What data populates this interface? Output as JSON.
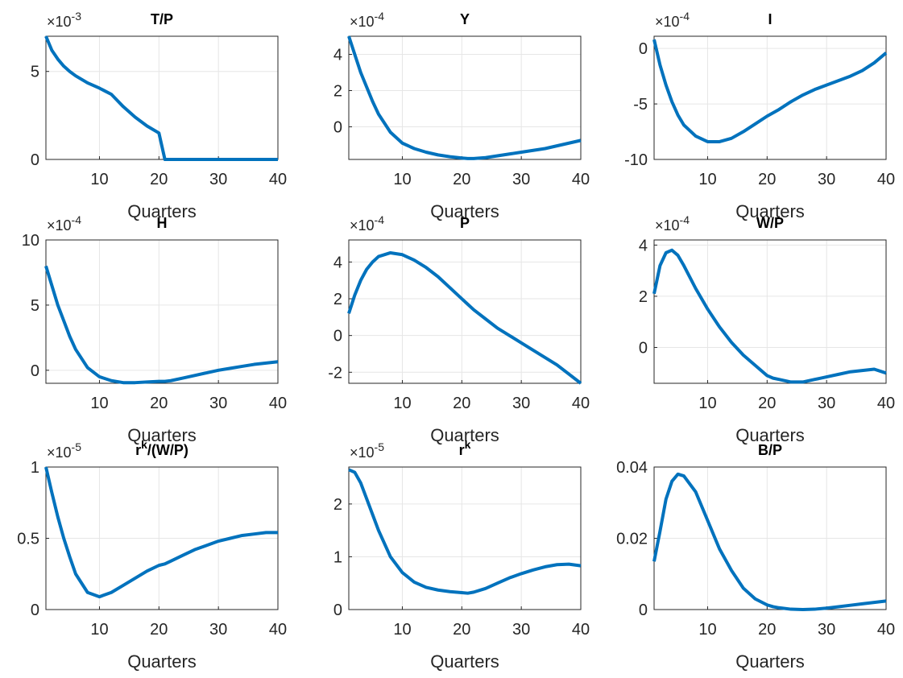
{
  "chart_data": [
    {
      "type": "line",
      "title": "T/P",
      "xlabel": "Quarters",
      "y_exponent_base": "×10",
      "y_exponent": -3,
      "color": "#0072bd",
      "grid": true,
      "x": [
        1,
        2,
        3,
        4,
        5,
        6,
        8,
        10,
        12,
        14,
        16,
        18,
        20,
        21,
        22,
        24,
        26,
        28,
        30,
        32,
        34,
        36,
        38,
        40
      ],
      "values": [
        7,
        6.2,
        5.7,
        5.3,
        5.0,
        4.75,
        4.35,
        4.05,
        3.7,
        3.0,
        2.4,
        1.9,
        1.5,
        0,
        0,
        0,
        0,
        0,
        0,
        0,
        0,
        0,
        0,
        0
      ],
      "xlim": [
        1,
        40
      ],
      "xticks": [
        10,
        20,
        30,
        40
      ],
      "ylim": [
        0,
        7
      ],
      "yticks": [
        0,
        5
      ]
    },
    {
      "type": "line",
      "title": "Y",
      "xlabel": "Quarters",
      "y_exponent_base": "×10",
      "y_exponent": -4,
      "color": "#0072bd",
      "grid": true,
      "x": [
        1,
        2,
        3,
        4,
        5,
        6,
        8,
        10,
        12,
        14,
        16,
        18,
        20,
        21,
        22,
        24,
        26,
        28,
        30,
        32,
        34,
        36,
        38,
        40
      ],
      "values": [
        5,
        4.0,
        3.0,
        2.2,
        1.4,
        0.7,
        -0.3,
        -0.9,
        -1.2,
        -1.4,
        -1.55,
        -1.65,
        -1.72,
        -1.75,
        -1.75,
        -1.7,
        -1.6,
        -1.5,
        -1.4,
        -1.3,
        -1.2,
        -1.05,
        -0.9,
        -0.75
      ],
      "xlim": [
        1,
        40
      ],
      "xticks": [
        10,
        20,
        30,
        40
      ],
      "ylim": [
        -1.8,
        5
      ],
      "yticks": [
        0,
        2,
        4
      ]
    },
    {
      "type": "line",
      "title": "I",
      "xlabel": "Quarters",
      "y_exponent_base": "×10",
      "y_exponent": -4,
      "color": "#0072bd",
      "grid": true,
      "x": [
        1,
        2,
        3,
        4,
        5,
        6,
        8,
        10,
        12,
        14,
        16,
        18,
        20,
        21,
        22,
        24,
        26,
        28,
        30,
        32,
        34,
        36,
        38,
        40
      ],
      "values": [
        0.8,
        -1.5,
        -3.3,
        -4.8,
        -6.0,
        -6.9,
        -7.9,
        -8.4,
        -8.4,
        -8.1,
        -7.5,
        -6.8,
        -6.1,
        -5.8,
        -5.5,
        -4.8,
        -4.2,
        -3.7,
        -3.3,
        -2.9,
        -2.5,
        -2.0,
        -1.3,
        -0.4
      ],
      "xlim": [
        1,
        40
      ],
      "xticks": [
        10,
        20,
        30,
        40
      ],
      "ylim": [
        -10,
        1.1
      ],
      "yticks": [
        -10,
        -5,
        0
      ]
    },
    {
      "type": "line",
      "title": "H",
      "xlabel": "Quarters",
      "y_exponent_base": "×10",
      "y_exponent": -4,
      "color": "#0072bd",
      "grid": true,
      "x": [
        1,
        2,
        3,
        4,
        5,
        6,
        8,
        10,
        12,
        14,
        16,
        18,
        20,
        21,
        22,
        24,
        26,
        28,
        30,
        32,
        34,
        36,
        38,
        40
      ],
      "values": [
        8,
        6.5,
        5,
        3.8,
        2.6,
        1.6,
        0.2,
        -0.5,
        -0.8,
        -0.95,
        -0.95,
        -0.9,
        -0.85,
        -0.85,
        -0.8,
        -0.6,
        -0.4,
        -0.2,
        0,
        0.15,
        0.3,
        0.45,
        0.55,
        0.65
      ],
      "xlim": [
        1,
        40
      ],
      "xticks": [
        10,
        20,
        30,
        40
      ],
      "ylim": [
        -1,
        10
      ],
      "yticks": [
        0,
        5,
        10
      ]
    },
    {
      "type": "line",
      "title": "P",
      "xlabel": "Quarters",
      "y_exponent_base": "×10",
      "y_exponent": -4,
      "color": "#0072bd",
      "grid": true,
      "x": [
        1,
        2,
        3,
        4,
        5,
        6,
        8,
        10,
        12,
        14,
        16,
        18,
        20,
        21,
        22,
        24,
        26,
        28,
        30,
        32,
        34,
        36,
        38,
        40
      ],
      "values": [
        1.2,
        2.2,
        3.0,
        3.6,
        4.0,
        4.3,
        4.5,
        4.4,
        4.1,
        3.7,
        3.2,
        2.6,
        2.0,
        1.7,
        1.4,
        0.9,
        0.4,
        0,
        -0.4,
        -0.8,
        -1.2,
        -1.6,
        -2.1,
        -2.6
      ],
      "xlim": [
        1,
        40
      ],
      "xticks": [
        10,
        20,
        30,
        40
      ],
      "ylim": [
        -2.6,
        5.2
      ],
      "yticks": [
        -2,
        0,
        2,
        4
      ]
    },
    {
      "type": "line",
      "title": "W/P",
      "xlabel": "Quarters",
      "y_exponent_base": "×10",
      "y_exponent": -4,
      "color": "#0072bd",
      "grid": true,
      "x": [
        1,
        2,
        3,
        4,
        5,
        6,
        8,
        10,
        12,
        14,
        16,
        18,
        20,
        21,
        22,
        24,
        26,
        28,
        30,
        32,
        34,
        36,
        38,
        40
      ],
      "values": [
        2.1,
        3.2,
        3.7,
        3.8,
        3.6,
        3.2,
        2.3,
        1.5,
        0.8,
        0.2,
        -0.3,
        -0.7,
        -1.1,
        -1.2,
        -1.25,
        -1.35,
        -1.35,
        -1.25,
        -1.15,
        -1.05,
        -0.95,
        -0.9,
        -0.85,
        -1.0
      ],
      "xlim": [
        1,
        40
      ],
      "xticks": [
        10,
        20,
        30,
        40
      ],
      "ylim": [
        -1.4,
        4.2
      ],
      "yticks": [
        0,
        2,
        4
      ]
    },
    {
      "type": "line",
      "title": "r",
      "title_sup": "k",
      "title_suffix": "/(W/P)",
      "xlabel": "Quarters",
      "y_exponent_base": "×10",
      "y_exponent": -5,
      "color": "#0072bd",
      "grid": true,
      "x": [
        1,
        2,
        3,
        4,
        5,
        6,
        8,
        10,
        12,
        14,
        16,
        18,
        20,
        21,
        22,
        24,
        26,
        28,
        30,
        32,
        34,
        36,
        38,
        40
      ],
      "values": [
        1,
        0.82,
        0.65,
        0.5,
        0.37,
        0.25,
        0.12,
        0.09,
        0.12,
        0.17,
        0.22,
        0.27,
        0.31,
        0.32,
        0.34,
        0.38,
        0.42,
        0.45,
        0.48,
        0.5,
        0.52,
        0.53,
        0.54,
        0.54
      ],
      "xlim": [
        1,
        40
      ],
      "xticks": [
        10,
        20,
        30,
        40
      ],
      "ylim": [
        0,
        1
      ],
      "yticks": [
        0,
        0.5,
        1
      ]
    },
    {
      "type": "line",
      "title": "r",
      "title_sup": "k",
      "xlabel": "Quarters",
      "y_exponent_base": "×10",
      "y_exponent": -5,
      "color": "#0072bd",
      "grid": true,
      "x": [
        1,
        2,
        3,
        4,
        5,
        6,
        8,
        10,
        12,
        14,
        16,
        18,
        20,
        21,
        22,
        24,
        26,
        28,
        30,
        32,
        34,
        36,
        38,
        40
      ],
      "values": [
        2.65,
        2.6,
        2.4,
        2.1,
        1.8,
        1.5,
        1.0,
        0.7,
        0.52,
        0.42,
        0.37,
        0.34,
        0.32,
        0.31,
        0.33,
        0.4,
        0.5,
        0.6,
        0.68,
        0.75,
        0.81,
        0.85,
        0.86,
        0.83
      ],
      "xlim": [
        1,
        40
      ],
      "xticks": [
        10,
        20,
        30,
        40
      ],
      "ylim": [
        0,
        2.7
      ],
      "yticks": [
        0,
        1,
        2
      ]
    },
    {
      "type": "line",
      "title": "B/P",
      "xlabel": "Quarters",
      "color": "#0072bd",
      "grid": true,
      "x": [
        1,
        2,
        3,
        4,
        5,
        6,
        8,
        10,
        12,
        14,
        16,
        18,
        20,
        21,
        22,
        24,
        26,
        28,
        30,
        32,
        34,
        36,
        38,
        40
      ],
      "values": [
        0.0135,
        0.022,
        0.031,
        0.036,
        0.038,
        0.0375,
        0.033,
        0.025,
        0.017,
        0.011,
        0.006,
        0.003,
        0.0013,
        0.0008,
        0.0005,
        0.0001,
        0,
        0.0001,
        0.0004,
        0.0008,
        0.0012,
        0.0016,
        0.002,
        0.0024
      ],
      "xlim": [
        1,
        40
      ],
      "xticks": [
        10,
        20,
        30,
        40
      ],
      "ylim": [
        0,
        0.04
      ],
      "yticks": [
        0,
        0.02,
        0.04
      ]
    }
  ]
}
